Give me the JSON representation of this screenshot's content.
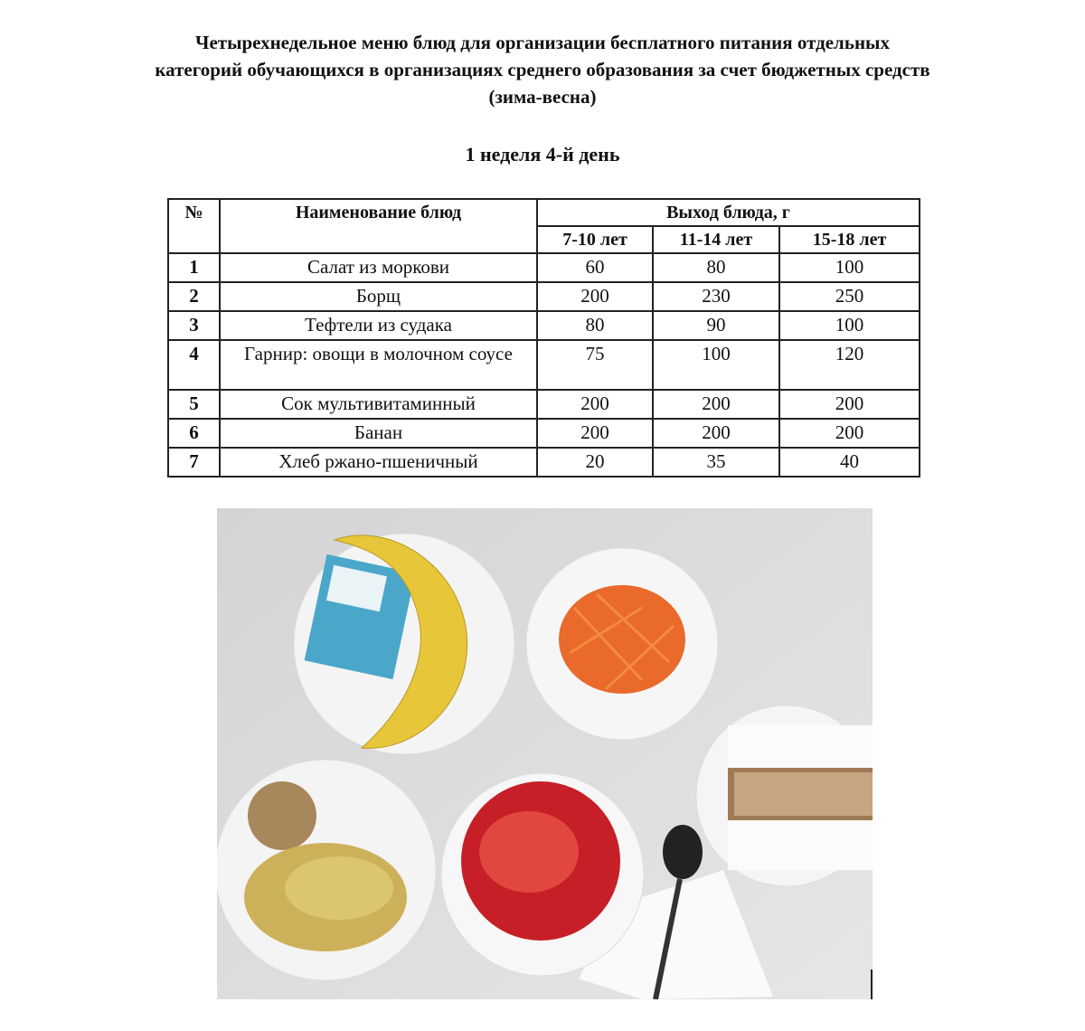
{
  "document": {
    "title_lines": [
      "Четырехнедельное меню блюд для организации бесплатного питания отдельных",
      "категорий обучающихся в организациях среднего образования за счет бюджетных средств",
      "(зима-весна)"
    ],
    "subtitle": "1 неделя 4-й день"
  },
  "table": {
    "headers": {
      "number": "№",
      "name": "Наименование блюд",
      "yield": "Выход блюда, г",
      "age_groups": [
        "7-10 лет",
        "11-14 лет",
        "15-18 лет"
      ]
    },
    "rows": [
      {
        "n": "1",
        "name": "Салат из моркови",
        "v": [
          "60",
          "80",
          "100"
        ]
      },
      {
        "n": "2",
        "name": "Борщ",
        "v": [
          "200",
          "230",
          "250"
        ]
      },
      {
        "n": "3",
        "name": "Тефтели из судака",
        "v": [
          "80",
          "90",
          "100"
        ]
      },
      {
        "n": "4",
        "name": "Гарнир: овощи в молочном соусе",
        "v": [
          "75",
          "100",
          "120"
        ]
      },
      {
        "n": "5",
        "name": "Сок мультивитаминный",
        "v": [
          "200",
          "200",
          "200"
        ]
      },
      {
        "n": "6",
        "name": "Банан",
        "v": [
          "200",
          "200",
          "200"
        ]
      },
      {
        "n": "7",
        "name": "Хлеб ржано-пшеничный",
        "v": [
          "20",
          "35",
          "40"
        ]
      }
    ]
  },
  "photo": {
    "subject": "meal-photo"
  }
}
